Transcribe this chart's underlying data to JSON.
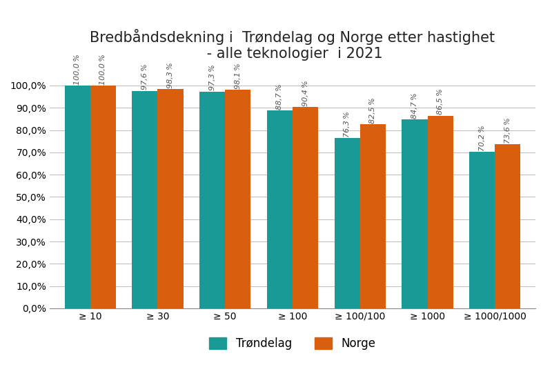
{
  "title": "Bredbåndsdekning i  Trøndelag og Norge etter hastighet\n - alle teknologier  i 2021",
  "categories": [
    "≥ 10",
    "≥ 30",
    "≥ 50",
    "≥ 100",
    "≥ 100/100",
    "≥ 1000",
    "≥ 1000/1000"
  ],
  "trondelag_values": [
    100.0,
    97.6,
    97.3,
    88.7,
    76.3,
    84.7,
    70.2
  ],
  "norge_values": [
    100.0,
    98.3,
    98.1,
    90.4,
    82.5,
    86.5,
    73.6
  ],
  "trondelag_color": "#1a9a96",
  "norge_color": "#d95f0e",
  "trondelag_label": "Trøndelag",
  "norge_label": "Norge",
  "ylim": [
    0,
    108
  ],
  "yticks": [
    0,
    10,
    20,
    30,
    40,
    50,
    60,
    70,
    80,
    90,
    100
  ],
  "ytick_labels": [
    "0,0%",
    "10,0%",
    "20,0%",
    "30,0%",
    "40,0%",
    "50,0%",
    "60,0%",
    "70,0%",
    "80,0%",
    "90,0%",
    "100,0%"
  ],
  "bar_width": 0.38,
  "title_fontsize": 15,
  "label_fontsize": 8,
  "tick_fontsize": 10,
  "legend_fontsize": 12,
  "background_color": "#ffffff",
  "grid_color": "#c0c0c0"
}
